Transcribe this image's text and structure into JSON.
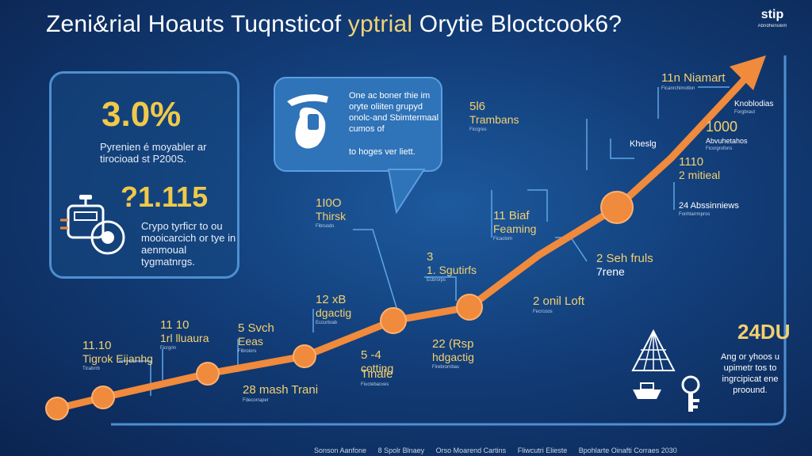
{
  "header": {
    "title_part1": "Zeni&rial Hoauts Tuqnsticof",
    "title_part2": "yptrial",
    "title_part3": "Orytie Bloctcook6?",
    "logo_mark": "stip",
    "logo_sub": "Abndhenslem"
  },
  "panel": {
    "stat1_value": "3.0%",
    "stat1_desc": "Pyrenien é moyabler ar tirocioad st P200S.",
    "stat2_value": "?1.115",
    "stat2_desc": "Crypo tyrficr to ou mooicarcich or tye in aenmoual tygmatnrgs."
  },
  "bubble": {
    "text": "One ac boner thie im oryte oliiten grupyd onolc-and Sbimtermaal cumos of",
    "last_line": "to hoges ver liett."
  },
  "chart_data": {
    "type": "line",
    "title": "",
    "xlabel": "",
    "ylabel": "",
    "series": [
      {
        "color": "#f08a3c",
        "values": [
          1,
          2,
          3,
          4,
          5,
          6,
          7,
          8,
          9,
          10
        ]
      }
    ],
    "annotations": [
      {
        "value": "11.10",
        "text": "Tigrok Eijanhg",
        "sub": "Ticabrrb"
      },
      {
        "value": "11 10",
        "text": "1rl lluaura",
        "sub": "Ficrgrin"
      },
      {
        "value": "5 Svch",
        "text": "Eeas",
        "sub": "Fibrolors"
      },
      {
        "value": "28 mash Trani",
        "text": "",
        "sub": "Fdecorraper"
      },
      {
        "value": "12 xB",
        "text": "dgactig",
        "sub": "Eccurtoab"
      },
      {
        "value": "1I0O",
        "text": "Thirsk",
        "sub": "Fibruods"
      },
      {
        "value": "3",
        "text": "1. Sgutirfs",
        "sub": "Ecbrorps"
      },
      {
        "value": "5 -4",
        "text": "cotting",
        "sub": ""
      },
      {
        "value": "Tinale",
        "text": "",
        "sub": "Fiuctebacxes"
      },
      {
        "value": "22 (Rsp",
        "text": "hdgactig",
        "sub": "Firebrornbas"
      },
      {
        "value": "5l6",
        "text": "Trambans",
        "sub": "Ficrgres"
      },
      {
        "value": "11 Biaf",
        "text": "Feaming",
        "sub": "Ficaclom"
      },
      {
        "value": "2 onil Loft",
        "text": "",
        "sub": "Fecrcoos"
      },
      {
        "value": "2 Seh fruls",
        "text": "7rene",
        "sub": ""
      },
      {
        "value": "Kheslg",
        "text": "",
        "sub": ""
      },
      {
        "value": "11n Niamart",
        "text": "",
        "sub": "Ficanrchimotlon"
      },
      {
        "value": "Knoblodias",
        "text": "Forgbraut",
        "sub": ""
      },
      {
        "value": "1000",
        "text": "Abvuhetahos",
        "sub": "Ficorgrofons"
      },
      {
        "value": "1110",
        "text": "2 mitieal",
        "sub": ""
      },
      {
        "value": "24 Abssinniews",
        "text": "Fonhtarrmpros",
        "sub": ""
      }
    ]
  },
  "right": {
    "big_value": "24DU",
    "desc": "Ang or yhoos u upimetr tos to ingrcipicat ene proound."
  },
  "footer": {
    "items": [
      "Sonson Aanfone",
      "8 Spolr Blnaey",
      "Orso Moarend Cartins",
      "Fliwcutri Elieste",
      "Bpohlarte Oinafti Corraes 2030"
    ]
  }
}
